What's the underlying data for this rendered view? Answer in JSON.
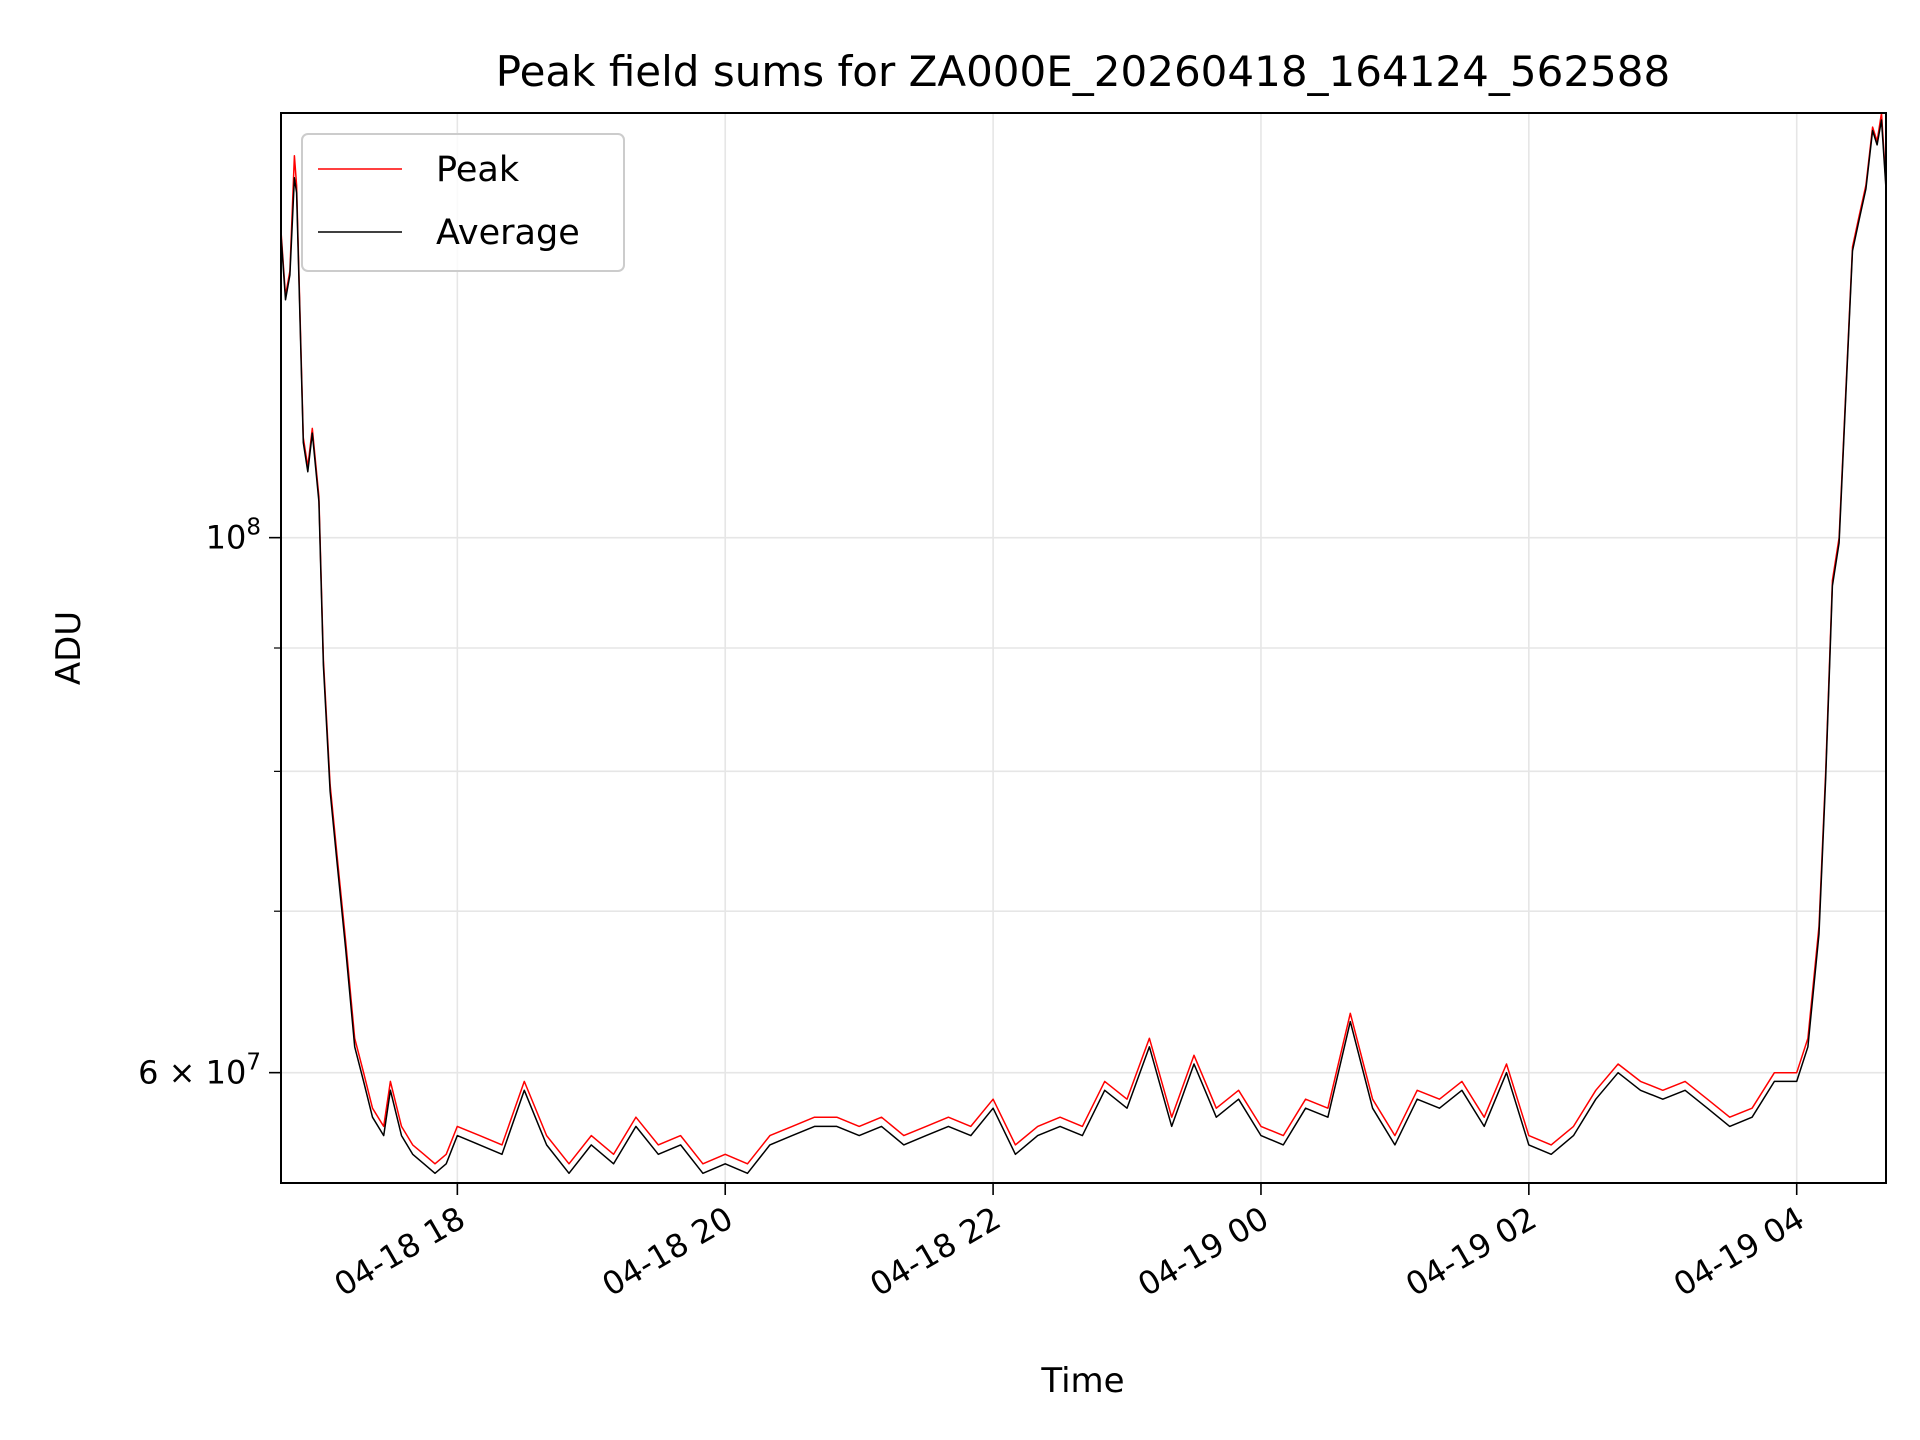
{
  "chart_data": {
    "type": "line",
    "title": "Peak field sums for ZA000E_20260418_164124_562588",
    "xlabel": "Time",
    "ylabel": "ADU",
    "yscale": "log",
    "grid": true,
    "legend_position": "top-left",
    "xlim": [
      "2026-04-18 16:41",
      "2026-04-19 04:40"
    ],
    "ylim": [
      54000000,
      150000000
    ],
    "x_ticks": [
      "2026-04-18 18:00",
      "2026-04-18 20:00",
      "2026-04-18 22:00",
      "2026-04-19 00:00",
      "2026-04-19 02:00",
      "2026-04-19 04:00"
    ],
    "x_tick_labels": [
      "04-18 18",
      "04-18 20",
      "04-18 22",
      "04-19 00",
      "04-19 02",
      "04-19 04"
    ],
    "y_major_ticks": [
      {
        "value": 100000000,
        "label_mantissa": "10",
        "label_exp": "8",
        "label_prefix": ""
      },
      {
        "value": 60000000,
        "label_mantissa": "10",
        "label_exp": "7",
        "label_prefix": "6 × "
      }
    ],
    "y_minor_ticks": [
      70000000,
      80000000,
      90000000
    ],
    "series": [
      {
        "name": "Peak",
        "color": "#ff0000",
        "x": [
          "2026-04-18 16:41",
          "2026-04-18 16:43",
          "2026-04-18 16:45",
          "2026-04-18 16:47",
          "2026-04-18 16:48",
          "2026-04-18 16:51",
          "2026-04-18 16:53",
          "2026-04-18 16:55",
          "2026-04-18 16:58",
          "2026-04-18 17:00",
          "2026-04-18 17:03",
          "2026-04-18 17:06",
          "2026-04-18 17:10",
          "2026-04-18 17:14",
          "2026-04-18 17:18",
          "2026-04-18 17:22",
          "2026-04-18 17:27",
          "2026-04-18 17:30",
          "2026-04-18 17:35",
          "2026-04-18 17:40",
          "2026-04-18 17:45",
          "2026-04-18 17:50",
          "2026-04-18 17:55",
          "2026-04-18 18:00",
          "2026-04-18 18:10",
          "2026-04-18 18:20",
          "2026-04-18 18:30",
          "2026-04-18 18:40",
          "2026-04-18 18:50",
          "2026-04-18 19:00",
          "2026-04-18 19:10",
          "2026-04-18 19:20",
          "2026-04-18 19:30",
          "2026-04-18 19:40",
          "2026-04-18 19:50",
          "2026-04-18 20:00",
          "2026-04-18 20:10",
          "2026-04-18 20:20",
          "2026-04-18 20:30",
          "2026-04-18 20:40",
          "2026-04-18 20:50",
          "2026-04-18 21:00",
          "2026-04-18 21:10",
          "2026-04-18 21:20",
          "2026-04-18 21:30",
          "2026-04-18 21:40",
          "2026-04-18 21:50",
          "2026-04-18 22:00",
          "2026-04-18 22:10",
          "2026-04-18 22:20",
          "2026-04-18 22:30",
          "2026-04-18 22:40",
          "2026-04-18 22:50",
          "2026-04-18 23:00",
          "2026-04-18 23:10",
          "2026-04-18 23:20",
          "2026-04-18 23:30",
          "2026-04-18 23:40",
          "2026-04-18 23:50",
          "2026-04-19 00:00",
          "2026-04-19 00:10",
          "2026-04-19 00:20",
          "2026-04-19 00:30",
          "2026-04-19 00:40",
          "2026-04-19 00:50",
          "2026-04-19 01:00",
          "2026-04-19 01:10",
          "2026-04-19 01:20",
          "2026-04-19 01:30",
          "2026-04-19 01:40",
          "2026-04-19 01:50",
          "2026-04-19 02:00",
          "2026-04-19 02:10",
          "2026-04-19 02:20",
          "2026-04-19 02:30",
          "2026-04-19 02:40",
          "2026-04-19 02:50",
          "2026-04-19 03:00",
          "2026-04-19 03:10",
          "2026-04-19 03:20",
          "2026-04-19 03:30",
          "2026-04-19 03:40",
          "2026-04-19 03:50",
          "2026-04-19 04:00",
          "2026-04-19 04:05",
          "2026-04-19 04:10",
          "2026-04-19 04:13",
          "2026-04-19 04:16",
          "2026-04-19 04:19",
          "2026-04-19 04:22",
          "2026-04-19 04:25",
          "2026-04-19 04:28",
          "2026-04-19 04:31",
          "2026-04-19 04:34",
          "2026-04-19 04:36",
          "2026-04-19 04:38",
          "2026-04-19 04:40"
        ],
        "values": [
          134000000,
          126000000,
          129000000,
          144000000,
          140000000,
          110000000,
          107000000,
          111000000,
          104000000,
          89000000,
          79000000,
          74000000,
          68000000,
          62000000,
          60000000,
          58000000,
          57000000,
          59500000,
          57000000,
          56000000,
          55500000,
          55000000,
          55500000,
          57000000,
          56500000,
          56000000,
          59500000,
          56500000,
          55000000,
          56500000,
          55500000,
          57500000,
          56000000,
          56500000,
          55000000,
          55500000,
          55000000,
          56500000,
          57000000,
          57500000,
          57500000,
          57000000,
          57500000,
          56500000,
          57000000,
          57500000,
          57000000,
          58500000,
          56000000,
          57000000,
          57500000,
          57000000,
          59500000,
          58500000,
          62000000,
          57500000,
          61000000,
          58000000,
          59000000,
          57000000,
          56500000,
          58500000,
          58000000,
          63500000,
          58500000,
          56500000,
          59000000,
          58500000,
          59500000,
          57500000,
          60500000,
          56500000,
          56000000,
          57000000,
          59000000,
          60500000,
          59500000,
          59000000,
          59500000,
          58500000,
          57500000,
          58000000,
          60000000,
          60000000,
          62000000,
          69000000,
          80000000,
          96000000,
          100000000,
          115000000,
          132000000,
          136000000,
          140000000,
          148000000,
          146000000,
          150000000,
          140000000
        ]
      },
      {
        "name": "Average",
        "color": "#000000",
        "x": [
          "2026-04-18 16:41",
          "2026-04-18 16:43",
          "2026-04-18 16:45",
          "2026-04-18 16:47",
          "2026-04-18 16:48",
          "2026-04-18 16:51",
          "2026-04-18 16:53",
          "2026-04-18 16:55",
          "2026-04-18 16:58",
          "2026-04-18 17:00",
          "2026-04-18 17:03",
          "2026-04-18 17:06",
          "2026-04-18 17:10",
          "2026-04-18 17:14",
          "2026-04-18 17:18",
          "2026-04-18 17:22",
          "2026-04-18 17:27",
          "2026-04-18 17:30",
          "2026-04-18 17:35",
          "2026-04-18 17:40",
          "2026-04-18 17:45",
          "2026-04-18 17:50",
          "2026-04-18 17:55",
          "2026-04-18 18:00",
          "2026-04-18 18:10",
          "2026-04-18 18:20",
          "2026-04-18 18:30",
          "2026-04-18 18:40",
          "2026-04-18 18:50",
          "2026-04-18 19:00",
          "2026-04-18 19:10",
          "2026-04-18 19:20",
          "2026-04-18 19:30",
          "2026-04-18 19:40",
          "2026-04-18 19:50",
          "2026-04-18 20:00",
          "2026-04-18 20:10",
          "2026-04-18 20:20",
          "2026-04-18 20:30",
          "2026-04-18 20:40",
          "2026-04-18 20:50",
          "2026-04-18 21:00",
          "2026-04-18 21:10",
          "2026-04-18 21:20",
          "2026-04-18 21:30",
          "2026-04-18 21:40",
          "2026-04-18 21:50",
          "2026-04-18 22:00",
          "2026-04-18 22:10",
          "2026-04-18 22:20",
          "2026-04-18 22:30",
          "2026-04-18 22:40",
          "2026-04-18 22:50",
          "2026-04-18 23:00",
          "2026-04-18 23:10",
          "2026-04-18 23:20",
          "2026-04-18 23:30",
          "2026-04-18 23:40",
          "2026-04-18 23:50",
          "2026-04-19 00:00",
          "2026-04-19 00:10",
          "2026-04-19 00:20",
          "2026-04-19 00:30",
          "2026-04-19 00:40",
          "2026-04-19 00:50",
          "2026-04-19 01:00",
          "2026-04-19 01:10",
          "2026-04-19 01:20",
          "2026-04-19 01:30",
          "2026-04-19 01:40",
          "2026-04-19 01:50",
          "2026-04-19 02:00",
          "2026-04-19 02:10",
          "2026-04-19 02:20",
          "2026-04-19 02:30",
          "2026-04-19 02:40",
          "2026-04-19 02:50",
          "2026-04-19 03:00",
          "2026-04-19 03:10",
          "2026-04-19 03:20",
          "2026-04-19 03:30",
          "2026-04-19 03:40",
          "2026-04-19 03:50",
          "2026-04-19 04:00",
          "2026-04-19 04:05",
          "2026-04-19 04:10",
          "2026-04-19 04:13",
          "2026-04-19 04:16",
          "2026-04-19 04:19",
          "2026-04-19 04:22",
          "2026-04-19 04:25",
          "2026-04-19 04:28",
          "2026-04-19 04:31",
          "2026-04-19 04:34",
          "2026-04-19 04:36",
          "2026-04-19 04:38",
          "2026-04-19 04:40"
        ],
        "values": [
          133500000,
          125500000,
          128500000,
          141000000,
          139000000,
          109500000,
          106500000,
          110500000,
          103500000,
          88500000,
          78500000,
          73500000,
          67500000,
          61500000,
          59500000,
          57500000,
          56500000,
          59000000,
          56500000,
          55500000,
          55000000,
          54500000,
          55000000,
          56500000,
          56000000,
          55500000,
          59000000,
          56000000,
          54500000,
          56000000,
          55000000,
          57000000,
          55500000,
          56000000,
          54500000,
          55000000,
          54500000,
          56000000,
          56500000,
          57000000,
          57000000,
          56500000,
          57000000,
          56000000,
          56500000,
          57000000,
          56500000,
          58000000,
          55500000,
          56500000,
          57000000,
          56500000,
          59000000,
          58000000,
          61500000,
          57000000,
          60500000,
          57500000,
          58500000,
          56500000,
          56000000,
          58000000,
          57500000,
          63000000,
          58000000,
          56000000,
          58500000,
          58000000,
          59000000,
          57000000,
          60000000,
          56000000,
          55500000,
          56500000,
          58500000,
          60000000,
          59000000,
          58500000,
          59000000,
          58000000,
          57000000,
          57500000,
          59500000,
          59500000,
          61500000,
          68500000,
          79500000,
          95500000,
          99500000,
          114500000,
          131500000,
          135500000,
          139500000,
          147500000,
          145500000,
          149000000,
          139500000
        ]
      }
    ]
  }
}
